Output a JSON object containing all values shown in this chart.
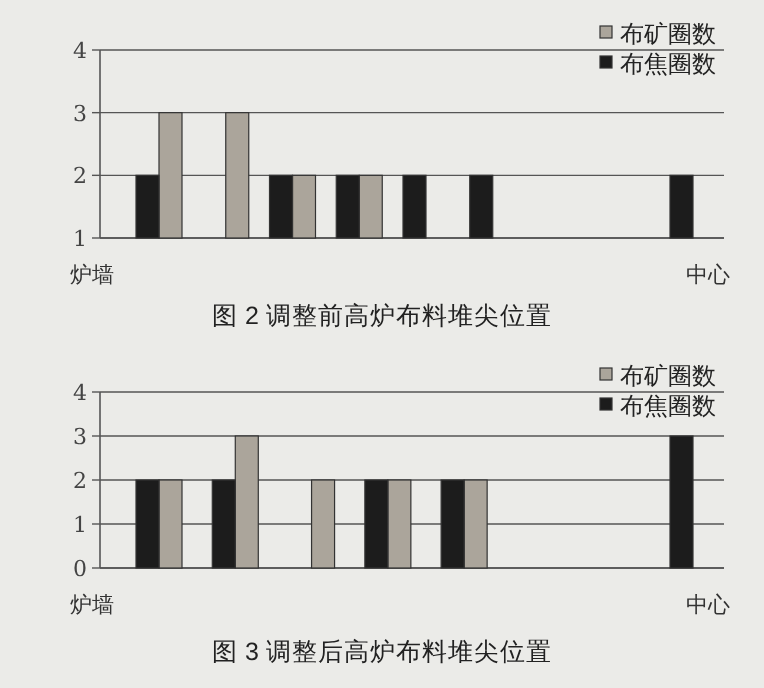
{
  "chart_data": [
    {
      "type": "bar",
      "title": "图 2  调整前高炉布料堆尖位置",
      "categories": [
        null,
        null,
        null,
        null,
        null,
        null,
        null,
        null,
        null
      ],
      "series": [
        {
          "name": "布矿圈数",
          "color": "#aba59b",
          "values": [
            3,
            3,
            2,
            2,
            null,
            null,
            null,
            null,
            null
          ]
        },
        {
          "name": "布焦圈数",
          "color": "#1c1c1c",
          "values": [
            2,
            null,
            2,
            2,
            2,
            2,
            null,
            null,
            2
          ]
        }
      ],
      "ylim": [
        1,
        4
      ],
      "yticks": [
        1,
        2,
        3,
        4
      ],
      "grid": "y",
      "legend": "top right",
      "annotations": [
        "炉墙",
        "中心"
      ]
    },
    {
      "type": "bar",
      "title": "图 3  调整后高炉布料堆尖位置",
      "categories": [
        null,
        null,
        null,
        null,
        null,
        null,
        null,
        null
      ],
      "series": [
        {
          "name": "布矿圈数",
          "color": "#aba59b",
          "values": [
            2,
            3,
            2,
            2,
            2,
            null,
            null,
            null
          ]
        },
        {
          "name": "布焦圈数",
          "color": "#1c1c1c",
          "values": [
            2,
            2,
            null,
            2,
            2,
            null,
            null,
            3
          ]
        }
      ],
      "ylim": [
        0,
        4
      ],
      "yticks": [
        0,
        1,
        2,
        3,
        4
      ],
      "grid": "y",
      "legend": "top right",
      "annotations": [
        "炉墙",
        "中心"
      ]
    }
  ]
}
